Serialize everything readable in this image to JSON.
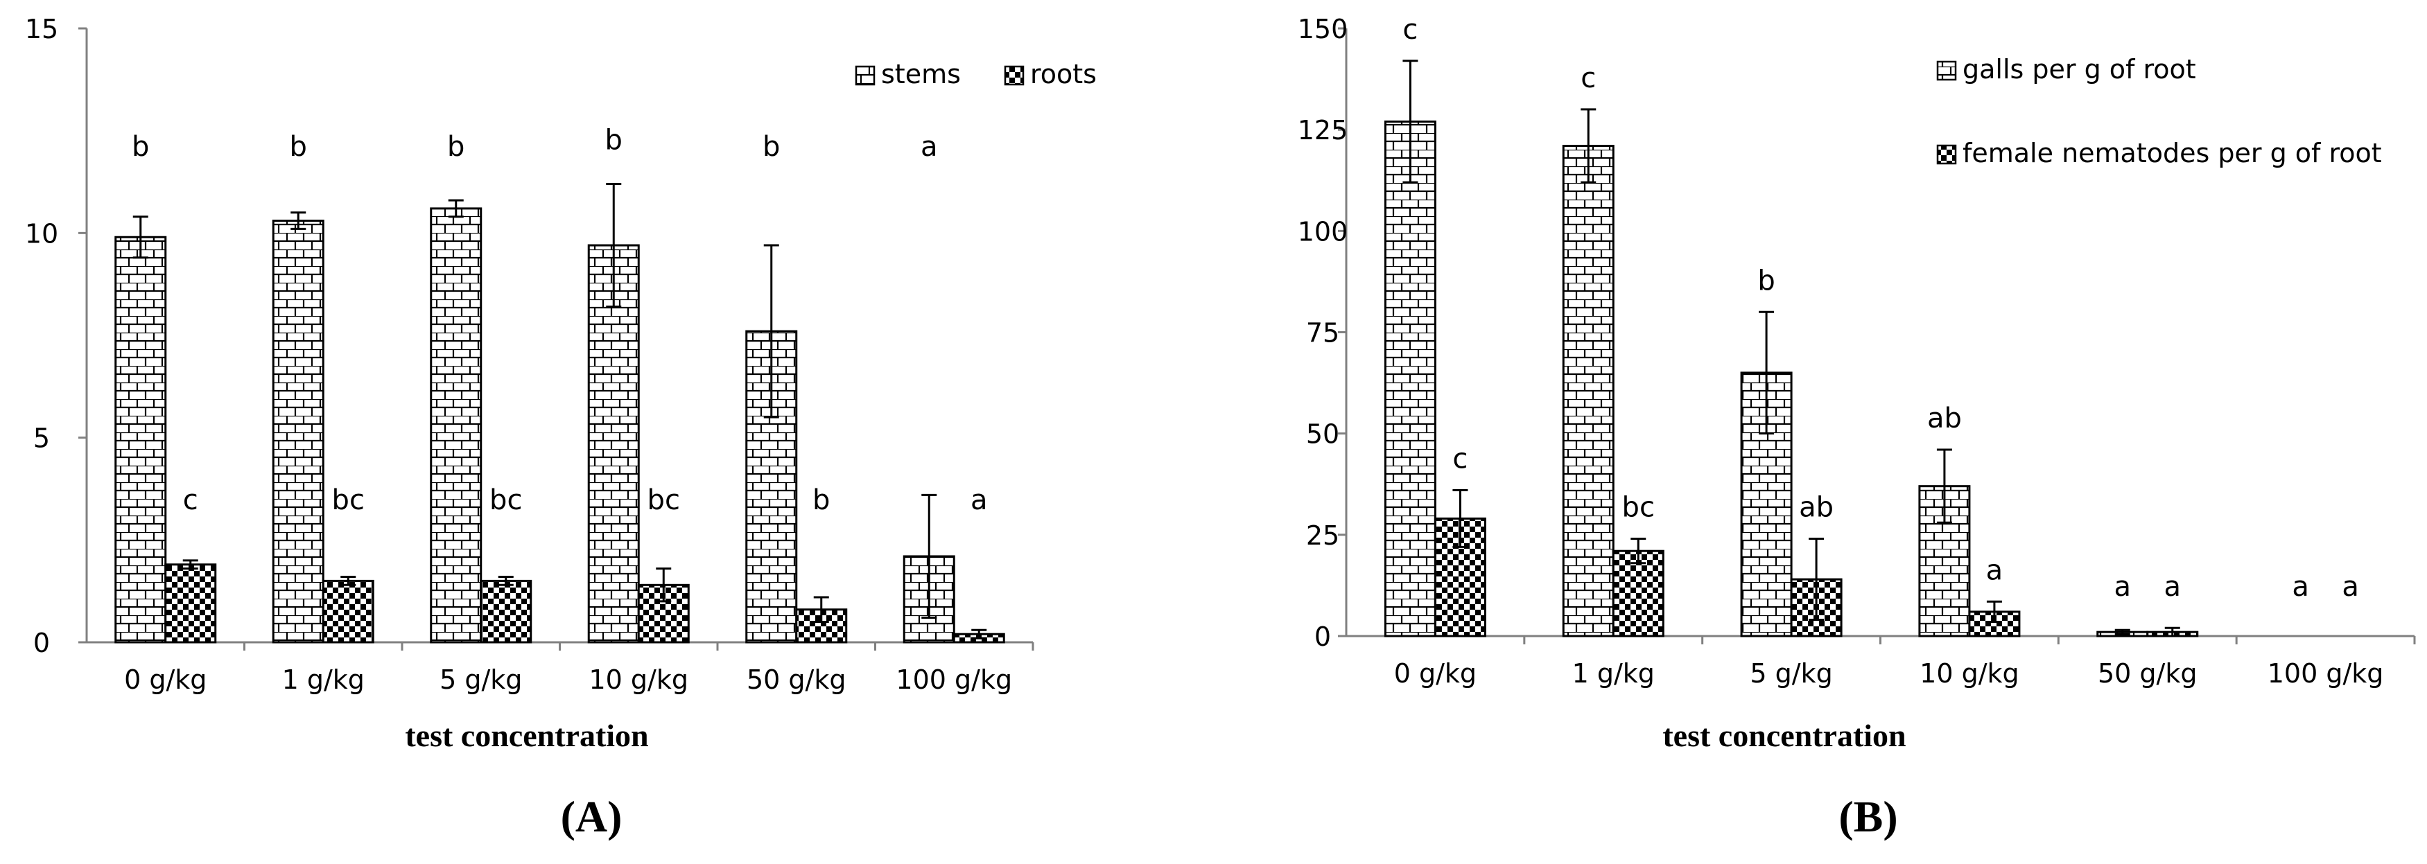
{
  "chart_data": [
    {
      "id": "A",
      "panel_label": "(A)",
      "type": "bar",
      "xlabel": "test concentration",
      "ylabel": "",
      "categories": [
        "0 g/kg",
        "1 g/kg",
        "5 g/kg",
        "10 g/kg",
        "50 g/kg",
        "100 g/kg"
      ],
      "ylim": [
        0,
        15
      ],
      "yticks": [
        0,
        5,
        10,
        15
      ],
      "legend_position": "top-right",
      "series": [
        {
          "name": "stems",
          "pattern": "brick",
          "values": [
            9.9,
            10.3,
            10.6,
            9.7,
            7.6,
            2.1
          ],
          "errors": [
            0.5,
            0.2,
            0.2,
            1.5,
            2.1,
            1.5
          ],
          "letters": [
            "b",
            "b",
            "b",
            "b",
            "b",
            "a"
          ]
        },
        {
          "name": "roots",
          "pattern": "checker",
          "values": [
            1.9,
            1.5,
            1.5,
            1.4,
            0.8,
            0.2
          ],
          "errors": [
            0.1,
            0.1,
            0.1,
            0.4,
            0.3,
            0.1
          ],
          "letters": [
            "c",
            "bc",
            "bc",
            "bc",
            "b",
            "a"
          ]
        }
      ]
    },
    {
      "id": "B",
      "panel_label": "(B)",
      "type": "bar",
      "xlabel": "test concentration",
      "ylabel": "",
      "categories": [
        "0 g/kg",
        "1 g/kg",
        "5 g/kg",
        "10 g/kg",
        "50 g/kg",
        "100 g/kg"
      ],
      "ylim": [
        0,
        150
      ],
      "yticks": [
        0,
        25,
        50,
        75,
        100,
        125,
        150
      ],
      "legend_position": "top-right",
      "series": [
        {
          "name": "galls per g of root",
          "pattern": "brick",
          "values": [
            127,
            121,
            65,
            37,
            1,
            0
          ],
          "errors": [
            15,
            9,
            15,
            9,
            0.5,
            0
          ],
          "letters": [
            "c",
            "c",
            "b",
            "ab",
            "a",
            "a"
          ]
        },
        {
          "name": "female nematodes per g of root",
          "pattern": "checker",
          "values": [
            29,
            21,
            14,
            6,
            1,
            0
          ],
          "errors": [
            7,
            3,
            10,
            2.5,
            1,
            0
          ],
          "letters": [
            "c",
            "bc",
            "ab",
            "a",
            "a",
            "a"
          ]
        }
      ]
    }
  ]
}
